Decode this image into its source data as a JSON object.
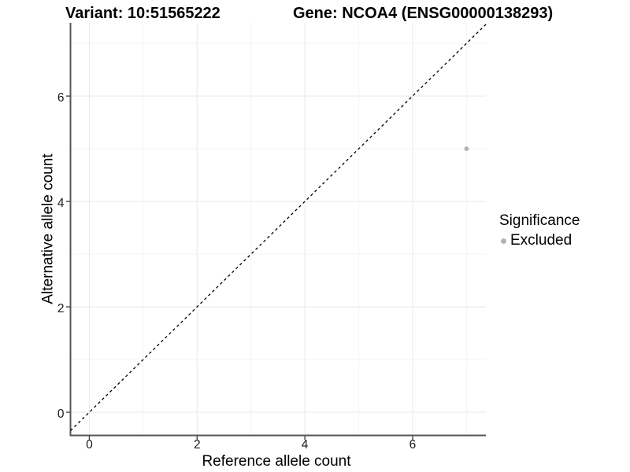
{
  "titles": {
    "variant": "Variant: 10:51565222",
    "gene": "Gene: NCOA4 (ENSG00000138293)"
  },
  "chart_data": {
    "type": "scatter",
    "title_left": "Variant: 10:51565222",
    "title_right": "Gene: NCOA4 (ENSG00000138293)",
    "xlabel": "Reference allele count",
    "ylabel": "Alternative allele count",
    "xlim": [
      -0.35,
      7.36
    ],
    "ylim": [
      -0.44,
      7.39
    ],
    "x_major_ticks": [
      0,
      2,
      4,
      6
    ],
    "y_major_ticks": [
      0,
      2,
      4,
      6
    ],
    "x_minor_gridlines": [
      1,
      3,
      5,
      7
    ],
    "y_minor_gridlines": [
      1,
      3,
      5,
      7
    ],
    "grid": true,
    "legend_position": "right",
    "series": [
      {
        "name": "Excluded",
        "points": [
          {
            "x": 7,
            "y": 5
          }
        ]
      }
    ],
    "reference_line": {
      "type": "identity",
      "slope": 1,
      "intercept": 0,
      "style": "dashed"
    }
  },
  "legend": {
    "title": "Significance",
    "items": [
      {
        "label": "Excluded",
        "color": "#b3b3b3"
      }
    ]
  },
  "colors": {
    "background": "#ffffff",
    "point": "#b3b3b3",
    "grid_major": "#ebebeb",
    "grid_minor": "#f4f4f4",
    "axis_line": "#555555",
    "tick_mark": "#444444",
    "dashed_line": "#000000",
    "text": "#000000"
  }
}
